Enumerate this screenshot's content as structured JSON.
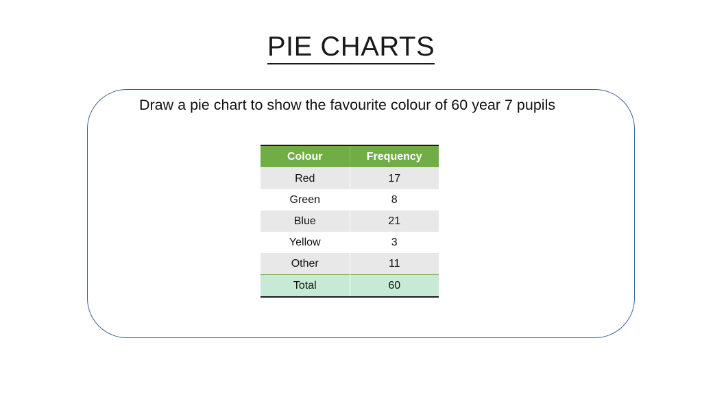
{
  "title": "PIE CHARTS",
  "prompt": "Draw a pie chart to show the favourite colour of 60 year 7 pupils",
  "table": {
    "headers": [
      "Colour",
      "Frequency"
    ],
    "rows": [
      {
        "colour": "Red",
        "frequency": "17"
      },
      {
        "colour": "Green",
        "frequency": "8"
      },
      {
        "colour": "Blue",
        "frequency": "21"
      },
      {
        "colour": "Yellow",
        "frequency": "3"
      },
      {
        "colour": "Other",
        "frequency": "11"
      }
    ],
    "total": {
      "label": "Total",
      "value": "60"
    }
  },
  "colors": {
    "header_bg": "#70ad47",
    "total_bg": "#c6ead6",
    "shaded_row_bg": "#e8e8e8",
    "box_border": "#3d5f8f"
  }
}
